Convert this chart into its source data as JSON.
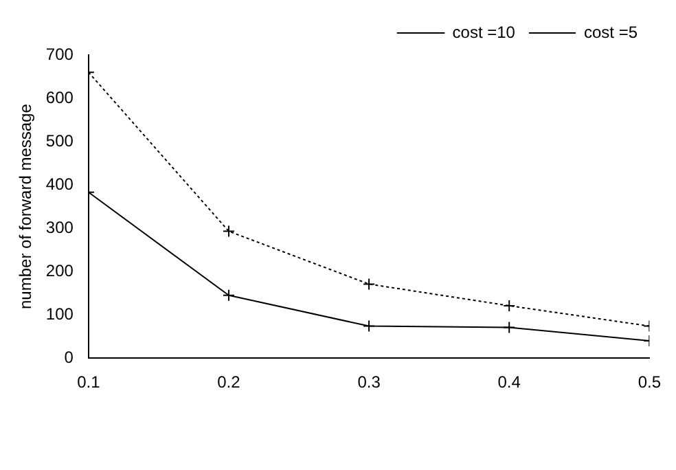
{
  "chart_data": {
    "type": "line",
    "x": [
      0.1,
      0.2,
      0.3,
      0.4,
      0.5
    ],
    "ylabel": "number of forward message",
    "xlim": [
      0.1,
      0.5
    ],
    "xticks": [
      0.1,
      0.2,
      0.3,
      0.4,
      0.5
    ],
    "ylim": [
      0,
      700
    ],
    "yticks": [
      0,
      100,
      200,
      300,
      400,
      500,
      600,
      700
    ],
    "grid": false,
    "legend": "top right",
    "series": [
      {
        "name": "cost =10",
        "color": "#000000",
        "values": [
          383,
          145,
          74,
          71,
          40
        ],
        "marker": "cross",
        "line_style": "solid"
      },
      {
        "name": "cost =5",
        "color": "#000000",
        "values": [
          660,
          293,
          171,
          121,
          74
        ],
        "marker": "cross",
        "line_style": "dotted"
      }
    ]
  }
}
